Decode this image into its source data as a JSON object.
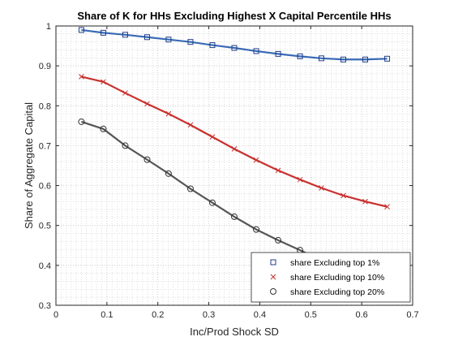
{
  "chart_data": {
    "type": "line",
    "title": "Share of K for HHs Excluding Highest X Capital Percentile HHs",
    "xlabel": "Inc/Prod Shock SD",
    "ylabel": "Share of Aggregate Capital",
    "xlim": [
      0,
      0.7
    ],
    "ylim": [
      0.3,
      1
    ],
    "xticks": [
      "0",
      "0.1",
      "0.2",
      "0.3",
      "0.4",
      "0.5",
      "0.6",
      "0.7"
    ],
    "yticks": [
      "0.3",
      "0.4",
      "0.5",
      "0.6",
      "0.7",
      "0.8",
      "0.9",
      "1"
    ],
    "grid": true,
    "minor_grid": true,
    "legend_position": "bottom-right",
    "x": [
      0.05,
      0.093,
      0.136,
      0.179,
      0.221,
      0.264,
      0.307,
      0.35,
      0.393,
      0.436,
      0.479,
      0.521,
      0.564,
      0.607,
      0.65
    ],
    "series": [
      {
        "name": "share Excluding top 1%",
        "color": "#3a6bb6",
        "marker": "square",
        "values": [
          0.99,
          0.983,
          0.978,
          0.972,
          0.966,
          0.96,
          0.952,
          0.945,
          0.937,
          0.93,
          0.924,
          0.919,
          0.916,
          0.916,
          0.918
        ]
      },
      {
        "name": "share Excluding top 10%",
        "color": "#c8312f",
        "marker": "x",
        "values": [
          0.873,
          0.86,
          0.832,
          0.805,
          0.78,
          0.752,
          0.722,
          0.692,
          0.664,
          0.638,
          0.615,
          0.594,
          0.575,
          0.56,
          0.547
        ]
      },
      {
        "name": "share Excluding top 20%",
        "color": "#555555",
        "marker": "circle",
        "values": [
          0.76,
          0.742,
          0.7,
          0.665,
          0.63,
          0.592,
          0.557,
          0.522,
          0.49,
          0.463,
          0.438,
          0.413,
          0.393,
          0.378,
          0.365
        ]
      }
    ]
  }
}
